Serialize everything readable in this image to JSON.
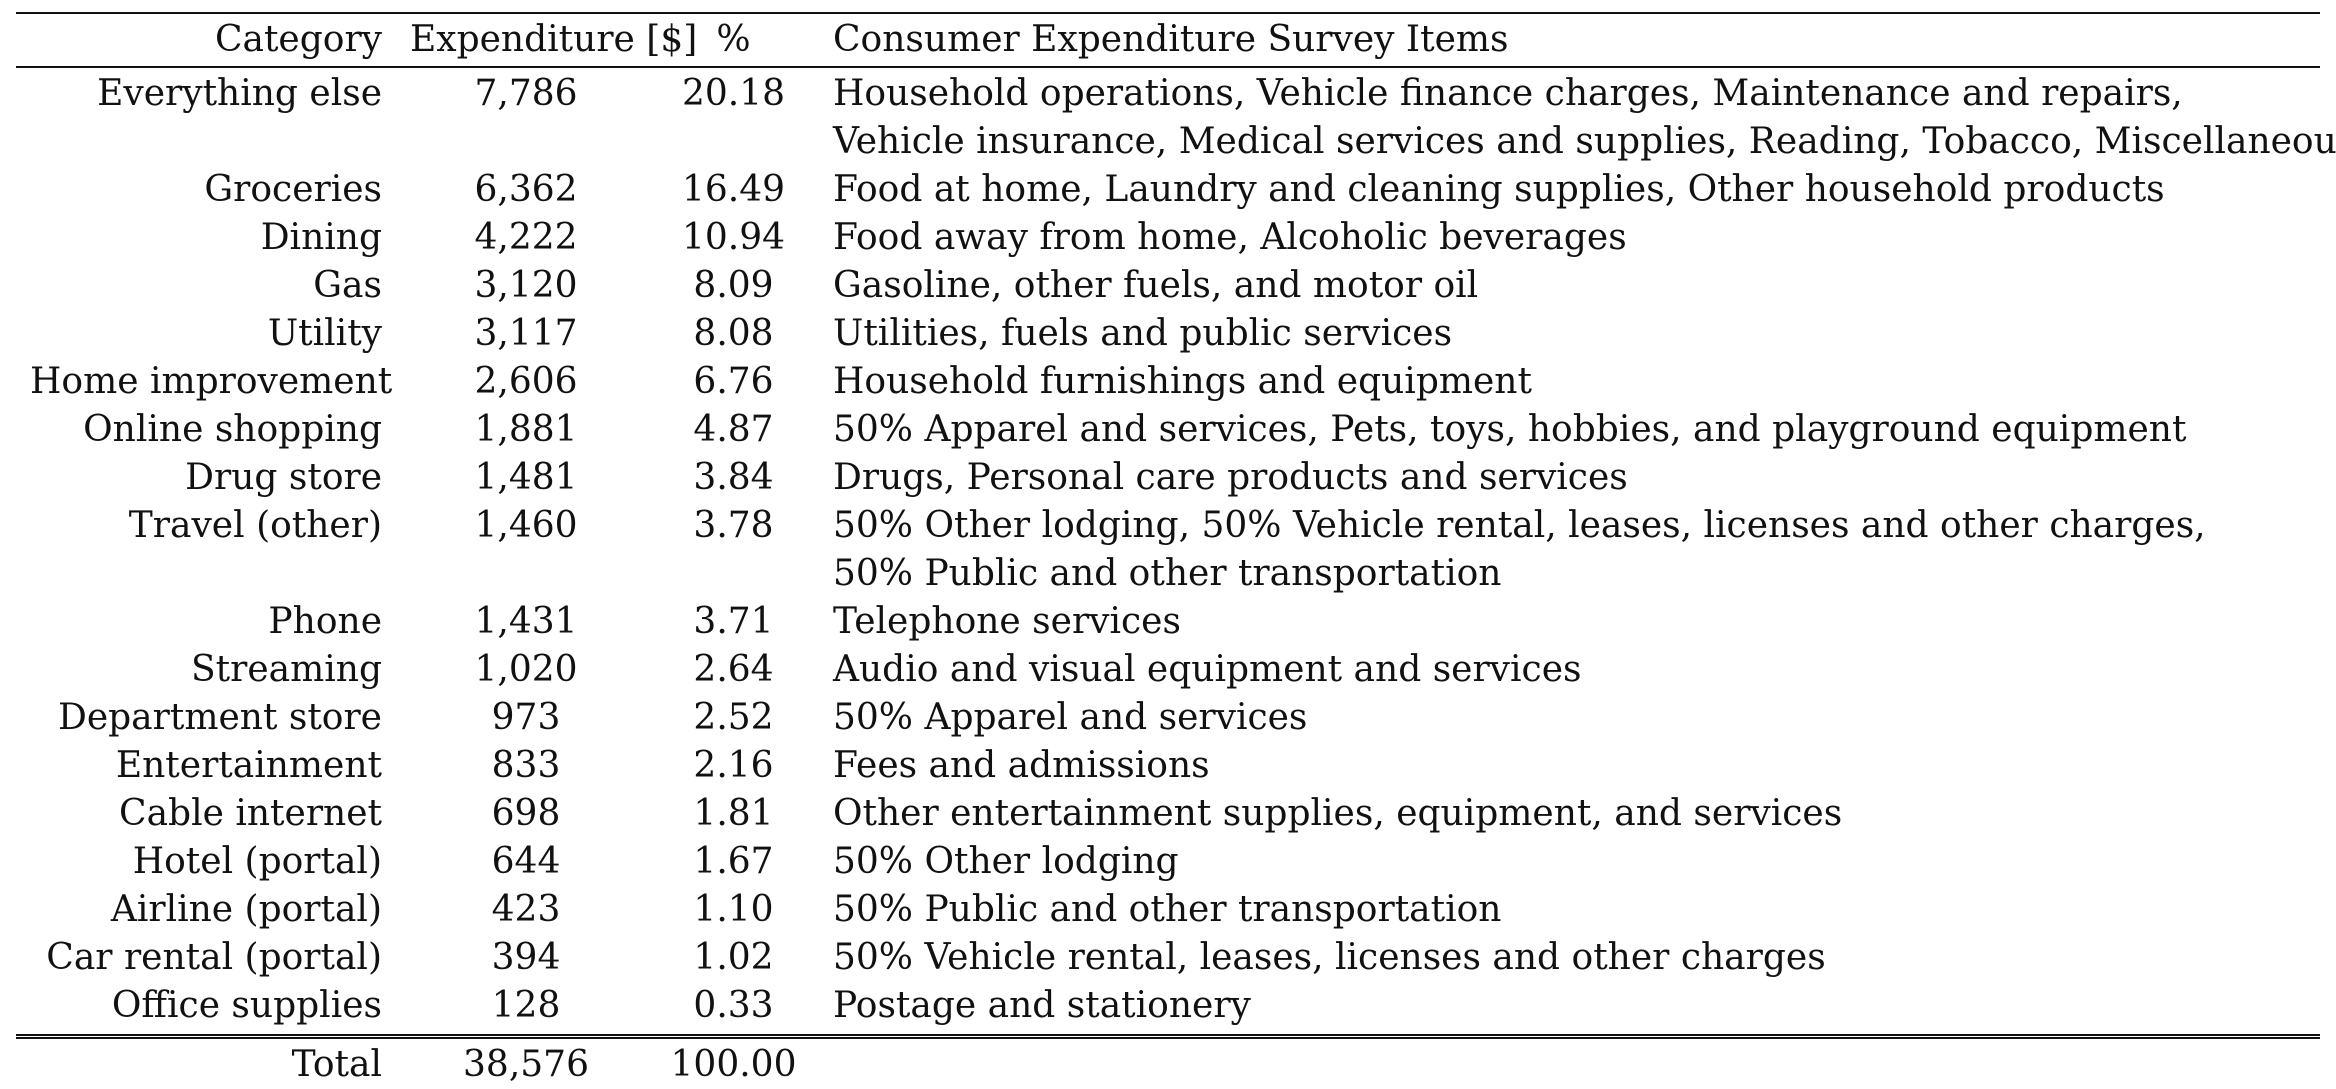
{
  "table": {
    "headers": {
      "category": "Category",
      "expenditure": "Expenditure [$]",
      "percent": "%",
      "items": "Consumer Expenditure Survey Items"
    },
    "rows": [
      {
        "category": "Everything else",
        "expenditure": "7,786",
        "percent": "20.18",
        "items": [
          "Household operations, Vehicle finance charges, Maintenance and repairs,",
          "Vehicle insurance, Medical services and supplies, Reading, Tobacco, Miscellaneous"
        ]
      },
      {
        "category": "Groceries",
        "expenditure": "6,362",
        "percent": "16.49",
        "items": [
          "Food at home, Laundry and cleaning supplies, Other household products"
        ]
      },
      {
        "category": "Dining",
        "expenditure": "4,222",
        "percent": "10.94",
        "items": [
          "Food away from home, Alcoholic beverages"
        ]
      },
      {
        "category": "Gas",
        "expenditure": "3,120",
        "percent": "8.09",
        "items": [
          "Gasoline, other fuels, and motor oil"
        ]
      },
      {
        "category": "Utility",
        "expenditure": "3,117",
        "percent": "8.08",
        "items": [
          "Utilities, fuels and public services"
        ]
      },
      {
        "category": "Home improvement",
        "expenditure": "2,606",
        "percent": "6.76",
        "items": [
          "Household furnishings and equipment"
        ]
      },
      {
        "category": "Online shopping",
        "expenditure": "1,881",
        "percent": "4.87",
        "items": [
          "50% Apparel and services, Pets, toys, hobbies, and playground equipment"
        ]
      },
      {
        "category": "Drug store",
        "expenditure": "1,481",
        "percent": "3.84",
        "items": [
          "Drugs, Personal care products and services"
        ]
      },
      {
        "category": "Travel (other)",
        "expenditure": "1,460",
        "percent": "3.78",
        "items": [
          "50% Other lodging, 50% Vehicle rental, leases, licenses and other charges,",
          "50% Public and other transportation"
        ]
      },
      {
        "category": "Phone",
        "expenditure": "1,431",
        "percent": "3.71",
        "items": [
          "Telephone services"
        ]
      },
      {
        "category": "Streaming",
        "expenditure": "1,020",
        "percent": "2.64",
        "items": [
          "Audio and visual equipment and services"
        ]
      },
      {
        "category": "Department store",
        "expenditure": "973",
        "percent": "2.52",
        "items": [
          "50% Apparel and services"
        ]
      },
      {
        "category": "Entertainment",
        "expenditure": "833",
        "percent": "2.16",
        "items": [
          "Fees and admissions"
        ]
      },
      {
        "category": "Cable internet",
        "expenditure": "698",
        "percent": "1.81",
        "items": [
          "Other entertainment supplies, equipment, and services"
        ]
      },
      {
        "category": "Hotel (portal)",
        "expenditure": "644",
        "percent": "1.67",
        "items": [
          "50% Other lodging"
        ]
      },
      {
        "category": "Airline (portal)",
        "expenditure": "423",
        "percent": "1.10",
        "items": [
          "50% Public and other transportation"
        ]
      },
      {
        "category": "Car rental (portal)",
        "expenditure": "394",
        "percent": "1.02",
        "items": [
          "50% Vehicle rental, leases, licenses and other charges"
        ]
      },
      {
        "category": "Office supplies",
        "expenditure": "128",
        "percent": "0.33",
        "items": [
          "Postage and stationery"
        ]
      }
    ],
    "total": {
      "category": "Total",
      "expenditure": "38,576",
      "percent": "100.00",
      "items": ""
    }
  }
}
